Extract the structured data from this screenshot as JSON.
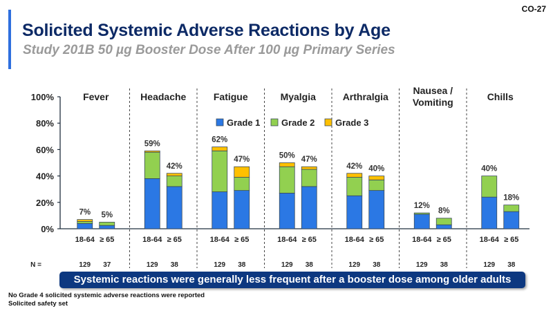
{
  "slide": {
    "number": "CO-27",
    "title": "Solicited Systemic Adverse Reactions by Age",
    "subtitle": "Study 201B 50 µg Booster Dose After 100 µg Primary Series",
    "banner": "Systemic reactions were generally less frequent after a booster dose among older adults",
    "footnotes": [
      "No Grade 4 solicited systemic adverse reactions were reported",
      "Solicited safety set"
    ],
    "n_label": "N ="
  },
  "colors": {
    "grade1": "#2b78e4",
    "grade2": "#92d050",
    "grade3": "#ffc000",
    "axis": "#1f2d3d",
    "divider": "#444444"
  },
  "chart_data": {
    "type": "bar",
    "stacked": true,
    "title": "Solicited Systemic Adverse Reactions by Age",
    "ylabel": "",
    "ylim": [
      0,
      100
    ],
    "yticks": [
      "0%",
      "20%",
      "40%",
      "60%",
      "80%",
      "100%"
    ],
    "legend": {
      "placement": "top-center",
      "entries": [
        "Grade 1",
        "Grade 2",
        "Grade 3"
      ]
    },
    "groups": [
      {
        "name": "Fever",
        "bars": [
          {
            "age": "18-64",
            "n": "129",
            "total_label": "7%",
            "grade1": 4,
            "grade2": 1.5,
            "grade3": 1.5
          },
          {
            "age": "≥ 65",
            "n": "37",
            "total_label": "5%",
            "grade1": 2.5,
            "grade2": 2.5,
            "grade3": 0
          }
        ]
      },
      {
        "name": "Headache",
        "bars": [
          {
            "age": "18-64",
            "n": "129",
            "total_label": "59%",
            "grade1": 38,
            "grade2": 20,
            "grade3": 1
          },
          {
            "age": "≥ 65",
            "n": "38",
            "total_label": "42%",
            "grade1": 32,
            "grade2": 8,
            "grade3": 2
          }
        ]
      },
      {
        "name": "Fatigue",
        "bars": [
          {
            "age": "18-64",
            "n": "129",
            "total_label": "62%",
            "grade1": 28,
            "grade2": 31,
            "grade3": 3
          },
          {
            "age": "≥ 65",
            "n": "38",
            "total_label": "47%",
            "grade1": 29,
            "grade2": 10,
            "grade3": 8
          }
        ]
      },
      {
        "name": "Myalgia",
        "bars": [
          {
            "age": "18-64",
            "n": "129",
            "total_label": "50%",
            "grade1": 27,
            "grade2": 20,
            "grade3": 3
          },
          {
            "age": "≥ 65",
            "n": "38",
            "total_label": "47%",
            "grade1": 32,
            "grade2": 13,
            "grade3": 2
          }
        ]
      },
      {
        "name": "Arthralgia",
        "bars": [
          {
            "age": "18-64",
            "n": "129",
            "total_label": "42%",
            "grade1": 25,
            "grade2": 14,
            "grade3": 3
          },
          {
            "age": "≥ 65",
            "n": "38",
            "total_label": "40%",
            "grade1": 29,
            "grade2": 8,
            "grade3": 3
          }
        ]
      },
      {
        "name": "Nausea / Vomiting",
        "bars": [
          {
            "age": "18-64",
            "n": "129",
            "total_label": "12%",
            "grade1": 11,
            "grade2": 1,
            "grade3": 0
          },
          {
            "age": "≥ 65",
            "n": "38",
            "total_label": "8%",
            "grade1": 3,
            "grade2": 5,
            "grade3": 0
          }
        ]
      },
      {
        "name": "Chills",
        "bars": [
          {
            "age": "18-64",
            "n": "129",
            "total_label": "40%",
            "grade1": 24,
            "grade2": 16,
            "grade3": 0
          },
          {
            "age": "≥ 65",
            "n": "38",
            "total_label": "18%",
            "grade1": 13,
            "grade2": 5,
            "grade3": 0
          }
        ]
      }
    ]
  }
}
